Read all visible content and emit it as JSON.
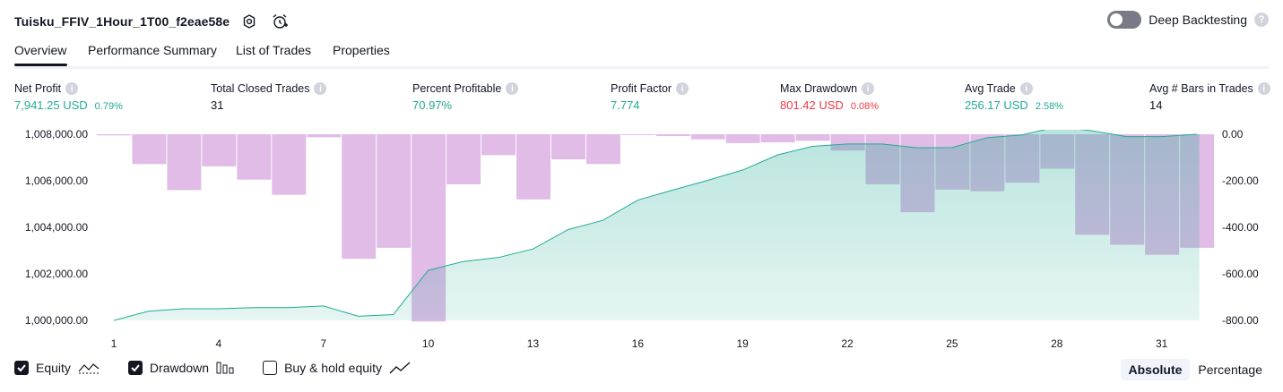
{
  "header": {
    "strategy_title": "Tuisku_FFIV_1Hour_1T00_f2eae58e",
    "settings_icon": "gear-icon",
    "alert_icon": "alarm-clock-icon",
    "deep_backtesting_label": "Deep Backtesting",
    "deep_backtesting_on": false
  },
  "tabs": [
    {
      "label": "Overview",
      "active": true
    },
    {
      "label": "Performance Summary",
      "active": false
    },
    {
      "label": "List of Trades",
      "active": false
    },
    {
      "label": "Properties",
      "active": false
    }
  ],
  "metrics": [
    {
      "label": "Net Profit",
      "value": "7,941.25 USD",
      "pct": "0.79%",
      "color": "#22ab94"
    },
    {
      "label": "Total Closed Trades",
      "value": "31",
      "pct": "",
      "color": "#131722"
    },
    {
      "label": "Percent Profitable",
      "value": "70.97%",
      "pct": "",
      "color": "#22ab94"
    },
    {
      "label": "Profit Factor",
      "value": "7.774",
      "pct": "",
      "color": "#22ab94"
    },
    {
      "label": "Max Drawdown",
      "value": "801.42 USD",
      "pct": "0.08%",
      "color": "#f23645"
    },
    {
      "label": "Avg Trade",
      "value": "256.17 USD",
      "pct": "2.58%",
      "color": "#22ab94"
    },
    {
      "label": "Avg # Bars in Trades",
      "value": "14",
      "pct": "",
      "color": "#131722"
    }
  ],
  "chart_data": {
    "type": "area",
    "left_axis": {
      "ticks": [
        "1,008,000.00",
        "1,006,000.00",
        "1,004,000.00",
        "1,002,000.00",
        "1,000,000.00"
      ],
      "range": [
        1000000,
        1008000
      ]
    },
    "right_axis": {
      "ticks": [
        "0.00",
        "-200.00",
        "-400.00",
        "-600.00",
        "-800.00"
      ],
      "range": [
        -800,
        0
      ]
    },
    "x_ticks": [
      "1",
      "4",
      "7",
      "10",
      "13",
      "16",
      "19",
      "22",
      "25",
      "28",
      "31"
    ],
    "x": [
      1,
      2,
      3,
      4,
      5,
      6,
      7,
      8,
      9,
      10,
      11,
      12,
      13,
      14,
      15,
      16,
      17,
      18,
      19,
      20,
      21,
      22,
      23,
      24,
      25,
      26,
      27,
      28,
      29,
      30,
      31,
      32
    ],
    "series": [
      {
        "name": "Equity",
        "color": "#22ab94",
        "values": [
          1000000,
          1000400,
          1000500,
          1000500,
          1000550,
          1000550,
          1000620,
          1000180,
          1000250,
          1002150,
          1002530,
          1002700,
          1003070,
          1003900,
          1004300,
          1005170,
          1005600,
          1006020,
          1006460,
          1007110,
          1007480,
          1007580,
          1007580,
          1007420,
          1007430,
          1007850,
          1007970,
          1008320,
          1008150,
          1007900,
          1007900,
          1008000
        ]
      },
      {
        "name": "Drawdown",
        "color": "#ce93d8",
        "values": [
          -5,
          -128,
          -240,
          -138,
          -195,
          -260,
          -13,
          -535,
          -488,
          -805,
          -215,
          -90,
          -280,
          -108,
          -128,
          -3,
          -8,
          -22,
          -38,
          -35,
          -28,
          -70,
          -215,
          -335,
          -238,
          -245,
          -208,
          -148,
          -432,
          -475,
          -518,
          -488
        ]
      }
    ]
  },
  "legend": {
    "equity_label": "Equity",
    "drawdown_label": "Drawdown",
    "buy_hold_label": "Buy & hold equity",
    "equity_checked": true,
    "drawdown_checked": true,
    "buy_hold_checked": false
  },
  "scale_toggle": {
    "absolute_label": "Absolute",
    "percentage_label": "Percentage",
    "selected": "Absolute"
  }
}
